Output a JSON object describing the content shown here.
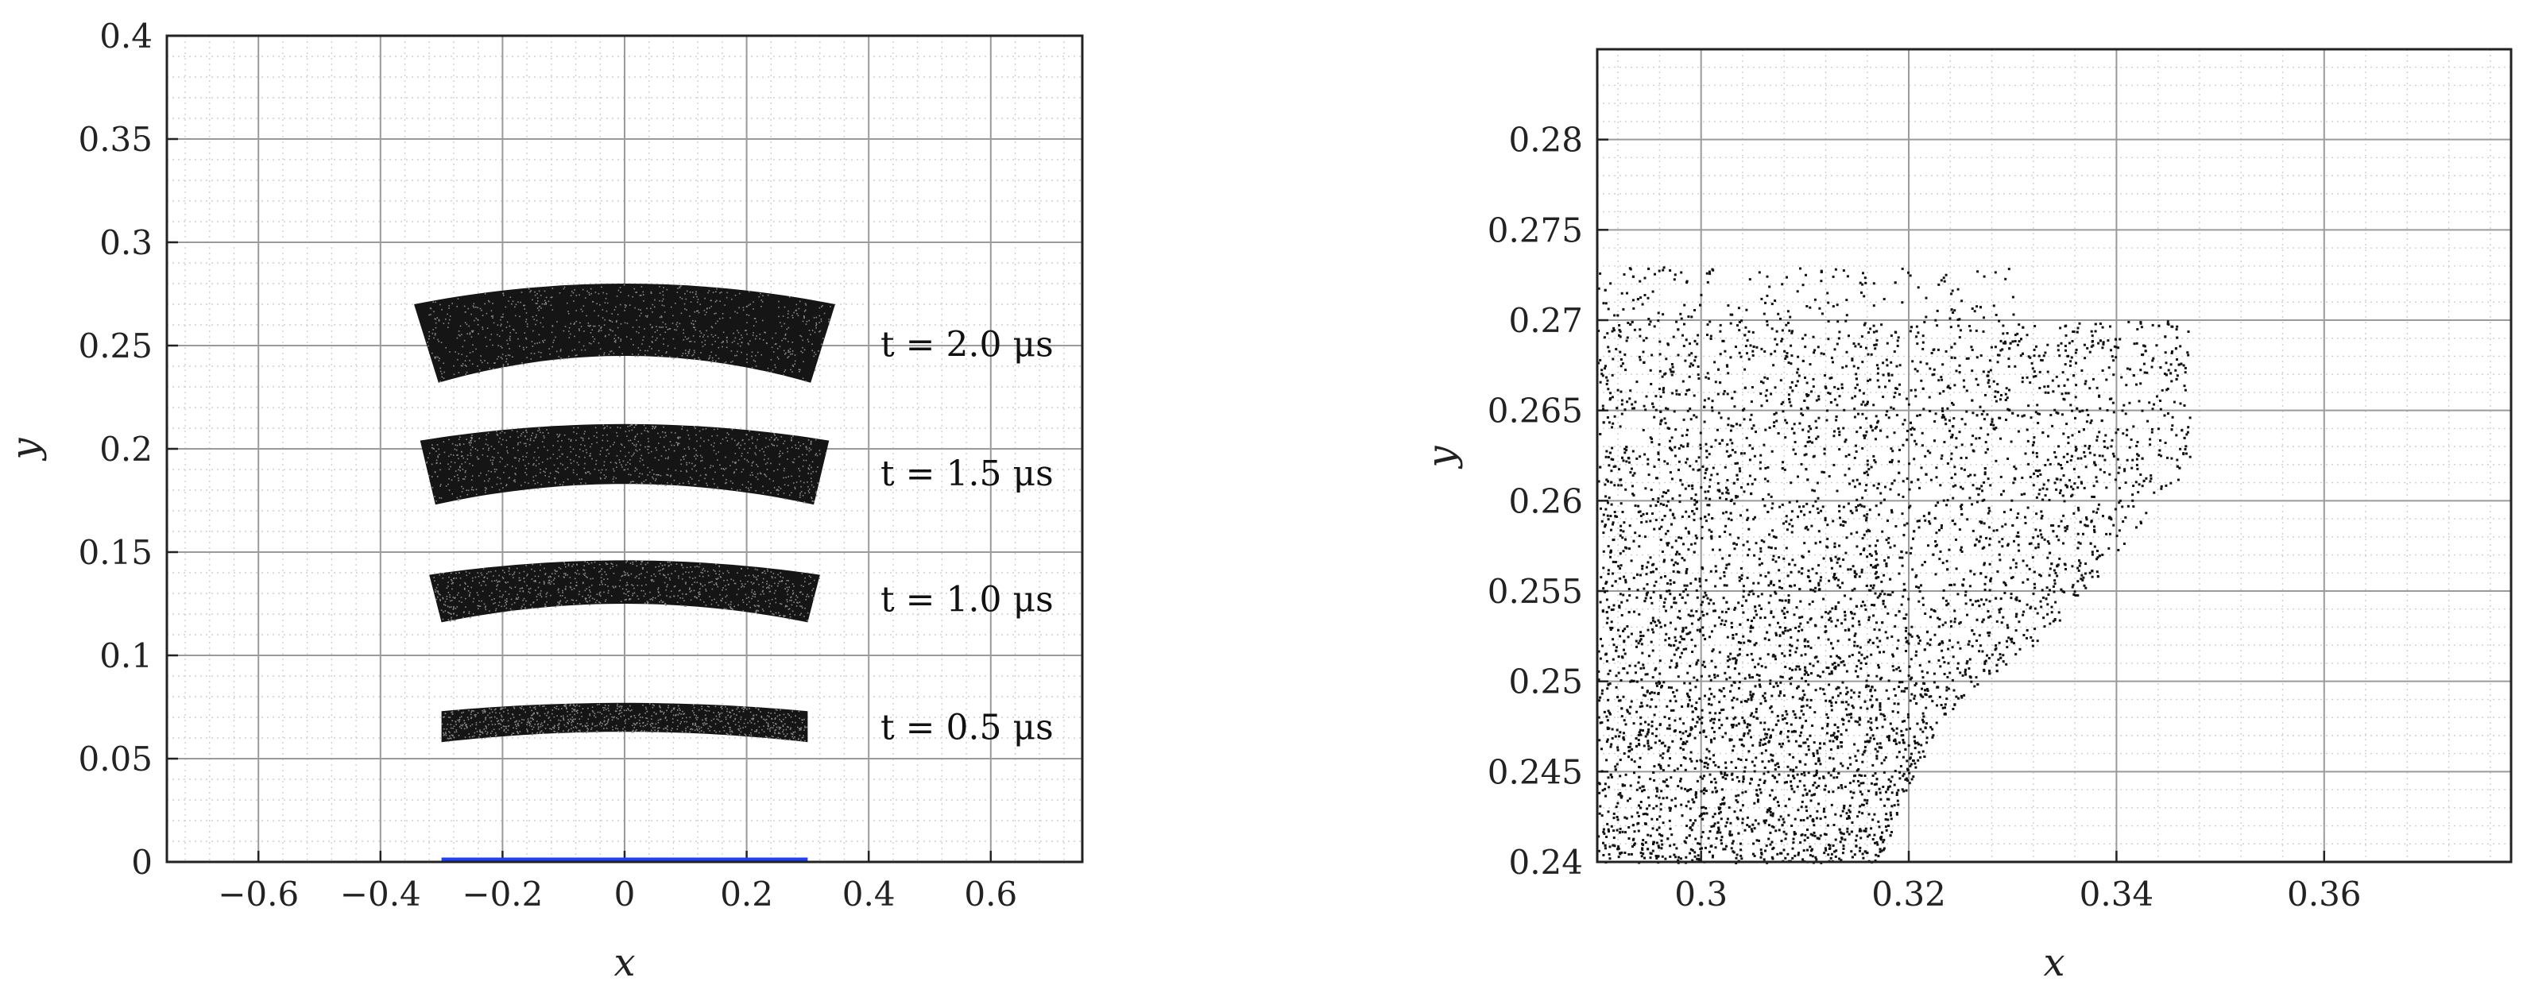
{
  "chart_data": [
    {
      "type": "scatter",
      "title": "",
      "xlabel": "x",
      "ylabel": "y",
      "xlim": [
        -0.75,
        0.75
      ],
      "ylim": [
        0,
        0.4
      ],
      "xticks": [
        -0.6,
        -0.4,
        -0.2,
        0,
        0.2,
        0.4,
        0.6
      ],
      "xtick_labels": [
        "−0.6",
        "−0.4",
        "−0.2",
        "0",
        "0.2",
        "0.4",
        "0.6"
      ],
      "yticks": [
        0,
        0.05,
        0.1,
        0.15,
        0.2,
        0.25,
        0.3,
        0.35,
        0.4
      ],
      "ytick_labels": [
        "0",
        "0.05",
        "0.1",
        "0.15",
        "0.2",
        "0.25",
        "0.3",
        "0.35",
        "0.4"
      ],
      "grid": true,
      "minor_grid": true,
      "baseline": {
        "x": [
          -0.3,
          0.3
        ],
        "y": 0,
        "color": "#1f3fff"
      },
      "point_color": "#111111",
      "bands": [
        {
          "t_label": "t = 2.0 μs",
          "x_left_bottom": -0.305,
          "x_left_top": -0.345,
          "x_right_bottom": 0.305,
          "x_right_top": 0.345,
          "y_center_bottom": 0.245,
          "y_center_top": 0.28,
          "y_edge_bottom": 0.232,
          "y_edge_top": 0.27
        },
        {
          "t_label": "t = 1.5 μs",
          "x_left_bottom": -0.31,
          "x_left_top": -0.335,
          "x_right_bottom": 0.31,
          "x_right_top": 0.335,
          "y_center_bottom": 0.183,
          "y_center_top": 0.212,
          "y_edge_bottom": 0.173,
          "y_edge_top": 0.204
        },
        {
          "t_label": "t = 1.0 μs",
          "x_left_bottom": -0.3,
          "x_left_top": -0.32,
          "x_right_bottom": 0.3,
          "x_right_top": 0.32,
          "y_center_bottom": 0.125,
          "y_center_top": 0.146,
          "y_edge_bottom": 0.116,
          "y_edge_top": 0.139
        },
        {
          "t_label": "t = 0.5 μs",
          "x_left_bottom": -0.3,
          "x_left_top": -0.3,
          "x_right_bottom": 0.3,
          "x_right_top": 0.3,
          "y_center_bottom": 0.063,
          "y_center_top": 0.077,
          "y_edge_bottom": 0.058,
          "y_edge_top": 0.073
        }
      ]
    },
    {
      "type": "scatter",
      "title": "",
      "xlabel": "x",
      "ylabel": "y",
      "xlim": [
        0.29,
        0.378
      ],
      "ylim": [
        0.24,
        0.285
      ],
      "xticks": [
        0.3,
        0.32,
        0.34,
        0.36
      ],
      "xtick_labels": [
        "0.3",
        "0.32",
        "0.34",
        "0.36"
      ],
      "yticks": [
        0.24,
        0.245,
        0.25,
        0.255,
        0.26,
        0.265,
        0.27,
        0.275,
        0.28
      ],
      "ytick_labels": [
        "0.24",
        "0.245",
        "0.25",
        "0.255",
        "0.26",
        "0.265",
        "0.27",
        "0.275",
        "0.28"
      ],
      "grid": true,
      "minor_grid": true,
      "point_color": "#111111",
      "region": {
        "top_y": [
          0.271,
          0.273
        ],
        "right_edge": [
          [
            0.347,
            0.27
          ],
          [
            0.347,
            0.262
          ],
          [
            0.334,
            0.253
          ],
          [
            0.323,
            0.248
          ],
          [
            0.317,
            0.24
          ]
        ]
      }
    }
  ]
}
